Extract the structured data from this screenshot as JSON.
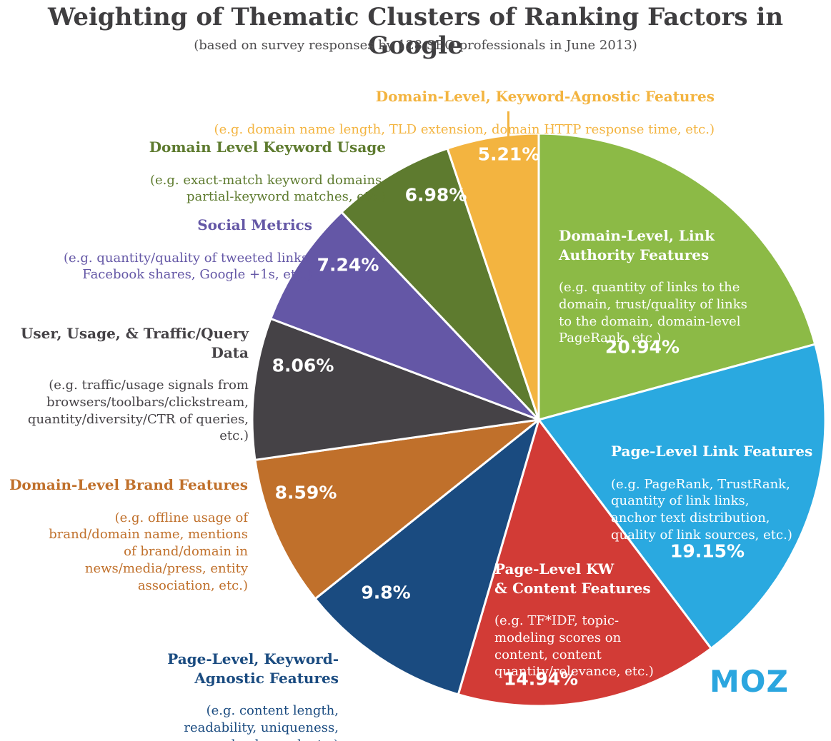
{
  "chart_data": {
    "type": "pie",
    "title": "Weighting of Thematic Clusters of Ranking Factors in Google",
    "subtitle": "(based on survey responses by 128 SEO professionals in June 2013)",
    "direction": "clockwise",
    "start_angle_deg": 0,
    "separator_color": "#ffffff",
    "slices": [
      {
        "label": "Domain-Level, Link\nAuthority Features",
        "description": "(e.g. quantity of links to the\ndomain, trust/quality of links\nto the domain, domain-level\nPageRank, etc.)",
        "value": 20.94,
        "pct_label": "20.94%",
        "color": "#8cba46",
        "label_placement": "inside"
      },
      {
        "label": "Page-Level Link Features",
        "description": "(e.g. PageRank, TrustRank,\nquantity of link links,\nanchor text distribution,\nquality of link sources, etc.)",
        "value": 19.15,
        "pct_label": "19.15%",
        "color": "#2aa9e0",
        "label_placement": "inside"
      },
      {
        "label": "Page-Level KW\n& Content Features",
        "description": "(e.g. TF*IDF, topic-\nmodeling scores on\ncontent, content\nquantity/relevance, etc.)",
        "value": 14.94,
        "pct_label": "14.94%",
        "color": "#d23b36",
        "label_placement": "inside"
      },
      {
        "label": "Page-Level, Keyword-\nAgnostic Features",
        "description": "(e.g. content length,\nreadability, uniqueness,\nload speed, etc.)",
        "value": 9.8,
        "pct_label": "9.8%",
        "color": "#1a4b80",
        "label_placement": "outside"
      },
      {
        "label": "Domain-Level Brand Features",
        "description": "(e.g. offline usage of\nbrand/domain name, mentions\nof brand/domain in\nnews/media/press, entity\nassociation, etc.)",
        "value": 8.59,
        "pct_label": "8.59%",
        "color": "#c0702b",
        "label_placement": "outside"
      },
      {
        "label": "User, Usage, & Traffic/Query Data",
        "description": "(e.g. traffic/usage signals from\nbrowsers/toolbars/clickstream,\nquantity/diversity/CTR of queries,\netc.)",
        "value": 8.06,
        "pct_label": "8.06%",
        "color": "#454246",
        "label_placement": "outside"
      },
      {
        "label": "Social Metrics",
        "description": "(e.g. quantity/quality of tweeted links,\nFacebook shares, Google +1s, etc.)",
        "value": 7.24,
        "pct_label": "7.24%",
        "color": "#6457a6",
        "label_placement": "outside"
      },
      {
        "label": "Domain Level Keyword Usage",
        "description": "(e.g. exact-match keyword domains,\npartial-keyword matches, etc.)",
        "value": 6.98,
        "pct_label": "6.98%",
        "color": "#5e7b2f",
        "label_placement": "outside"
      },
      {
        "label": "Domain-Level, Keyword-Agnostic Features",
        "description": "(e.g. domain name length, TLD extension, domain HTTP response time, etc.)",
        "value": 5.21,
        "pct_label": "5.21%",
        "color": "#f3b440",
        "label_placement": "outside"
      }
    ]
  },
  "brand": {
    "logo_text": "MOZ",
    "color": "#2ba6df"
  }
}
